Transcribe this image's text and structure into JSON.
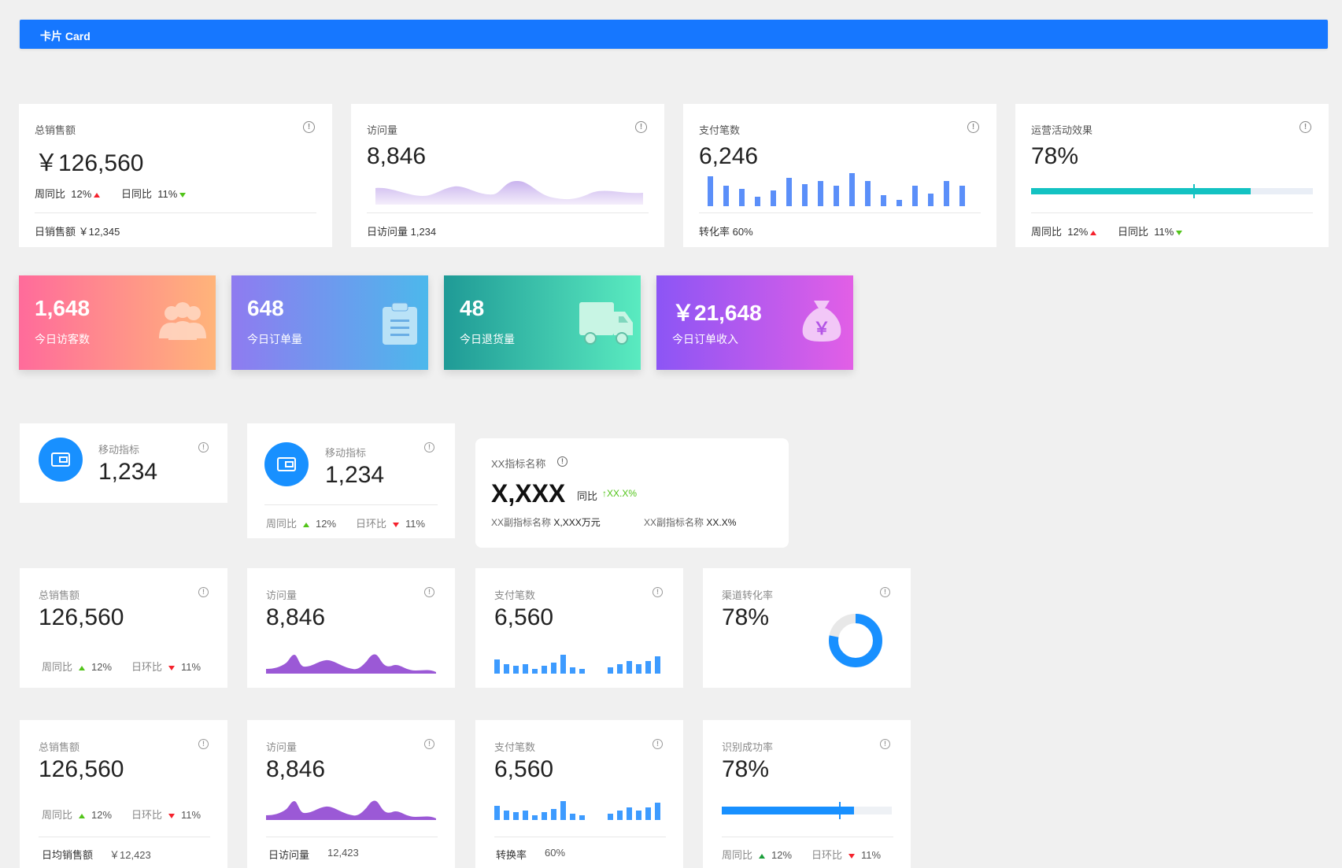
{
  "header": {
    "title": "卡片 Card",
    "accent": "#1677ff"
  },
  "row1": [
    {
      "label": "总销售额",
      "value": "￥126,560",
      "week_label": "周同比",
      "week_value": "12%",
      "day_label": "日同比",
      "day_value": "11%",
      "footer": "日销售额 ￥12,345"
    },
    {
      "label": "访问量",
      "value": "8,846",
      "footer": "日访问量 1,234"
    },
    {
      "label": "支付笔数",
      "value": "6,246",
      "footer": "转化率 60%"
    },
    {
      "label": "运营活动效果",
      "value": "78%",
      "progress": 0.78,
      "week_label": "周同比",
      "week_value": "12%",
      "day_label": "日同比",
      "day_value": "11%"
    }
  ],
  "row2": [
    {
      "value": "1,648",
      "label": "今日访客数",
      "icon": "users-icon"
    },
    {
      "value": "648",
      "label": "今日订单量",
      "icon": "clipboard-icon"
    },
    {
      "value": "48",
      "label": "今日退货量",
      "icon": "truck-icon"
    },
    {
      "value": "￥21,648",
      "label": "今日订单收入",
      "icon": "money-bag-icon"
    }
  ],
  "row3": {
    "mobile1": {
      "label": "移动指标",
      "value": "1,234"
    },
    "mobile2": {
      "label": "移动指标",
      "value": "1,234",
      "week_label": "周同比",
      "week_value": "12%",
      "day_label": "日环比",
      "day_value": "11%"
    },
    "xx": {
      "label": "XX指标名称",
      "value": "X,XXX",
      "compare_label": "同比",
      "compare_value": "↑XX.X%",
      "sub1_label": "XX副指标名称",
      "sub1_value": "X,XXX万元",
      "sub2_label": "XX副指标名称",
      "sub2_value": "XX.X%"
    }
  },
  "row4": [
    {
      "label": "总销售额",
      "value": "126,560",
      "week_label": "周同比",
      "week_value": "12%",
      "day_label": "日环比",
      "day_value": "11%"
    },
    {
      "label": "访问量",
      "value": "8,846"
    },
    {
      "label": "支付笔数",
      "value": "6,560"
    },
    {
      "label": "渠道转化率",
      "value": "78%",
      "ratio": 0.78
    }
  ],
  "row5": [
    {
      "label": "总销售额",
      "value": "126,560",
      "week_label": "周同比",
      "week_value": "12%",
      "day_label": "日环比",
      "day_value": "11%",
      "footer_label": "日均销售额",
      "footer_value": "￥12,423"
    },
    {
      "label": "访问量",
      "value": "8,846",
      "footer_label": "日访问量",
      "footer_value": "12,423"
    },
    {
      "label": "支付笔数",
      "value": "6,560",
      "footer_label": "转换率",
      "footer_value": "60%"
    },
    {
      "label": "识别成功率",
      "value": "78%",
      "progress": 0.78,
      "week_label": "周同比",
      "week_value": "12%",
      "day_label": "日环比",
      "day_value": "11%"
    }
  ]
}
